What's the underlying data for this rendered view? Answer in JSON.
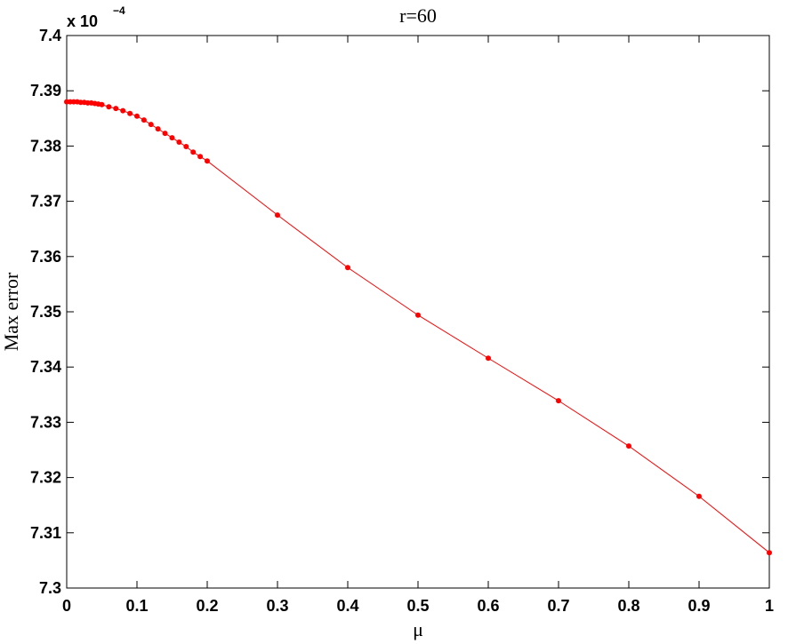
{
  "chart_data": {
    "type": "line",
    "title": "r=60",
    "x_label": "μ",
    "y_label": "Max error",
    "y_multiplier": {
      "base": "x 10",
      "exponent": "−4"
    },
    "x": [
      0,
      0.005,
      0.01,
      0.015,
      0.02,
      0.025,
      0.03,
      0.035,
      0.04,
      0.045,
      0.05,
      0.06,
      0.07,
      0.08,
      0.09,
      0.1,
      0.11,
      0.12,
      0.13,
      0.14,
      0.15,
      0.16,
      0.17,
      0.18,
      0.19,
      0.2,
      0.3,
      0.4,
      0.5,
      0.6,
      0.7,
      0.8,
      0.9,
      1
    ],
    "series": [
      {
        "name": "Max error",
        "color": "#ff0000",
        "values": [
          7.388,
          7.388,
          7.388,
          7.388,
          7.3879,
          7.3879,
          7.3878,
          7.3878,
          7.3877,
          7.3876,
          7.3875,
          7.3871,
          7.3868,
          7.3864,
          7.3859,
          7.3854,
          7.3847,
          7.3839,
          7.3831,
          7.3823,
          7.3815,
          7.3807,
          7.3799,
          7.3789,
          7.3781,
          7.3773,
          7.3675,
          7.358,
          7.3494,
          7.3416,
          7.3339,
          7.3257,
          7.3166,
          7.3064
        ]
      }
    ],
    "xlim": [
      0,
      1
    ],
    "xticks": [
      0,
      0.1,
      0.2,
      0.3,
      0.4,
      0.5,
      0.6,
      0.7,
      0.8,
      0.9,
      1
    ],
    "ylim": [
      7.3,
      7.4
    ],
    "yticks": [
      7.3,
      7.31,
      7.32,
      7.33,
      7.34,
      7.35,
      7.36,
      7.37,
      7.38,
      7.39,
      7.4
    ],
    "grid": false
  }
}
